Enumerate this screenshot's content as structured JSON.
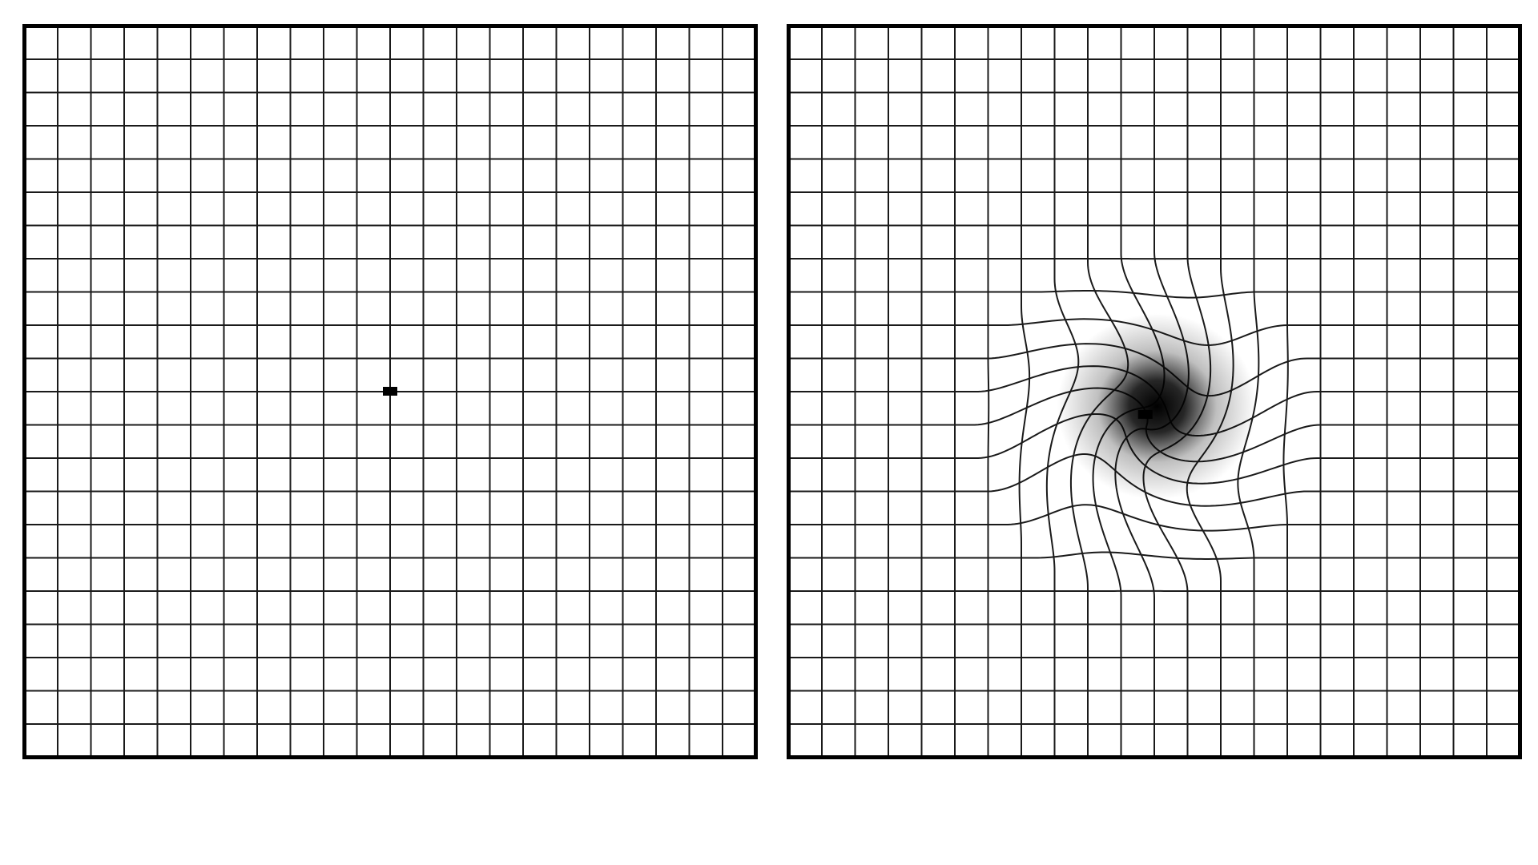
{
  "figure": {
    "panels": [
      {
        "id": "normal",
        "label": "",
        "grid_cells": 22,
        "fixation_dot": true,
        "distortion": "none"
      },
      {
        "id": "distorted",
        "label": "",
        "grid_cells": 22,
        "fixation_dot": true,
        "distortion": "central-swirl",
        "has_dark_central_spot": true
      }
    ],
    "colors": {
      "line": "#1a1a1a",
      "border": "#000000",
      "background": "#ffffff",
      "spot": "#000000"
    }
  }
}
